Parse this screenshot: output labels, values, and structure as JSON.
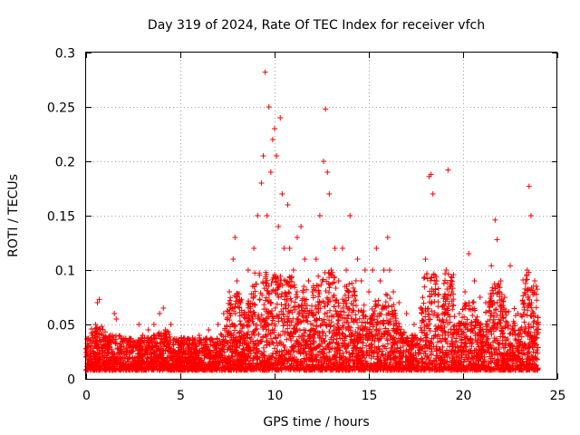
{
  "chart_data": {
    "type": "scatter",
    "title": "Day 319 of 2024, Rate Of TEC Index for receiver vfch",
    "xlabel": "GPS time / hours",
    "ylabel": "ROTI / TECUs",
    "xlim": [
      0,
      25
    ],
    "ylim": [
      0,
      0.3
    ],
    "xticks": [
      0,
      5,
      10,
      15,
      20,
      25
    ],
    "xtick_labels": [
      "0",
      "5",
      "10",
      "15",
      "20",
      "25"
    ],
    "yticks": [
      0,
      0.05,
      0.1,
      0.15,
      0.2,
      0.25,
      0.3
    ],
    "ytick_labels": [
      "0",
      "0.05",
      "0.1",
      "0.15",
      "0.2",
      "0.25",
      "0.3"
    ],
    "grid": true,
    "legend": "none",
    "marker": "plus",
    "series_color": "#ff0000",
    "series": [
      {
        "name": "ROTI",
        "x": [
          0.1,
          0.3,
          0.5,
          0.6,
          0.7,
          0.9,
          1.2,
          1.5,
          1.6,
          2.0,
          2.5,
          2.8,
          3.0,
          3.3,
          3.6,
          3.9,
          4.1,
          4.2,
          4.5,
          5.0,
          5.5,
          6.0,
          6.5,
          7.0,
          7.3,
          7.6,
          7.8,
          7.9,
          8.0,
          8.2,
          8.4,
          8.6,
          8.9,
          9.1,
          9.3,
          9.4,
          9.5,
          9.6,
          9.7,
          9.8,
          9.9,
          10.0,
          10.1,
          10.2,
          10.3,
          10.4,
          10.5,
          10.6,
          10.7,
          10.8,
          11.0,
          11.2,
          11.4,
          11.6,
          11.8,
          12.0,
          12.2,
          12.4,
          12.6,
          12.7,
          12.8,
          12.9,
          13.0,
          13.2,
          13.4,
          13.6,
          13.8,
          14.0,
          14.2,
          14.4,
          14.6,
          14.8,
          15.0,
          15.2,
          15.4,
          15.6,
          15.8,
          16.0,
          16.1,
          16.3,
          16.6,
          17.0,
          17.4,
          17.8,
          18.0,
          18.2,
          18.3,
          18.4,
          18.6,
          18.9,
          19.1,
          19.2,
          19.4,
          19.8,
          20.1,
          20.3,
          20.6,
          20.9,
          21.2,
          21.5,
          21.7,
          21.8,
          22.0,
          22.2,
          22.5,
          22.9,
          23.2,
          23.4,
          23.5,
          23.6,
          23.8,
          24.0
        ],
        "values": [
          0.03,
          0.04,
          0.05,
          0.07,
          0.073,
          0.04,
          0.03,
          0.06,
          0.055,
          0.03,
          0.035,
          0.05,
          0.04,
          0.045,
          0.05,
          0.06,
          0.065,
          0.045,
          0.05,
          0.03,
          0.035,
          0.04,
          0.045,
          0.05,
          0.06,
          0.08,
          0.11,
          0.13,
          0.09,
          0.07,
          0.06,
          0.1,
          0.12,
          0.15,
          0.18,
          0.205,
          0.282,
          0.15,
          0.25,
          0.19,
          0.22,
          0.23,
          0.205,
          0.14,
          0.24,
          0.17,
          0.12,
          0.09,
          0.16,
          0.12,
          0.1,
          0.13,
          0.14,
          0.11,
          0.09,
          0.08,
          0.11,
          0.15,
          0.2,
          0.248,
          0.19,
          0.17,
          0.1,
          0.12,
          0.09,
          0.12,
          0.1,
          0.15,
          0.08,
          0.11,
          0.09,
          0.1,
          0.08,
          0.1,
          0.12,
          0.09,
          0.1,
          0.13,
          0.1,
          0.08,
          0.07,
          0.06,
          0.05,
          0.06,
          0.11,
          0.186,
          0.188,
          0.17,
          0.09,
          0.06,
          0.1,
          0.192,
          0.08,
          0.06,
          0.08,
          0.115,
          0.09,
          0.075,
          0.07,
          0.104,
          0.146,
          0.128,
          0.09,
          0.075,
          0.104,
          0.06,
          0.07,
          0.1,
          0.177,
          0.15,
          0.09,
          0.05
        ]
      }
    ]
  }
}
